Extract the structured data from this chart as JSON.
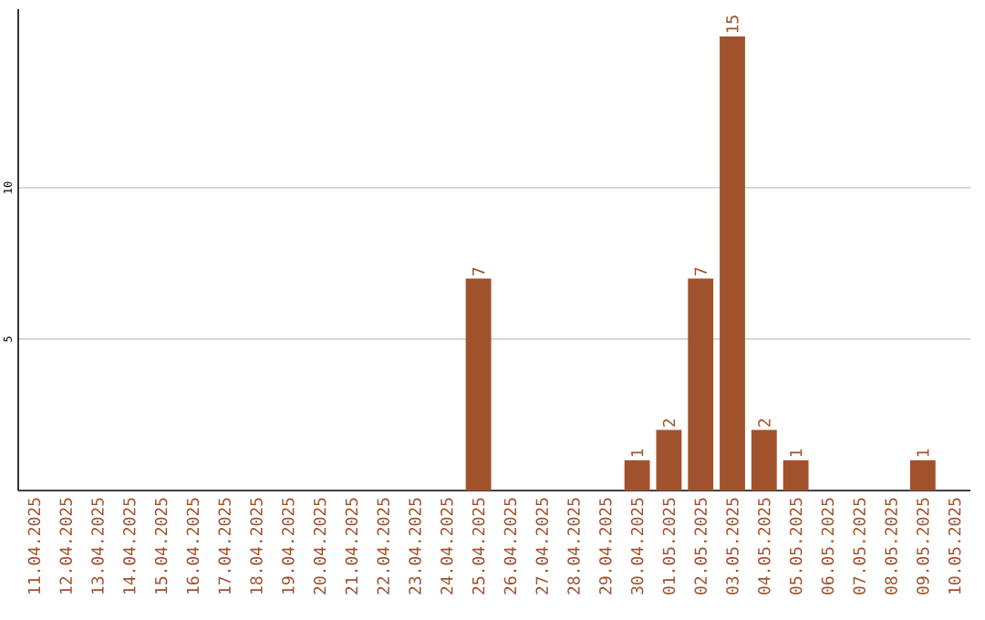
{
  "chart_data": {
    "type": "bar",
    "categories": [
      "11.04.2025",
      "12.04.2025",
      "13.04.2025",
      "14.04.2025",
      "15.04.2025",
      "16.04.2025",
      "17.04.2025",
      "18.04.2025",
      "19.04.2025",
      "20.04.2025",
      "21.04.2025",
      "22.04.2025",
      "23.04.2025",
      "24.04.2025",
      "25.04.2025",
      "26.04.2025",
      "27.04.2025",
      "28.04.2025",
      "29.04.2025",
      "30.04.2025",
      "01.05.2025",
      "02.05.2025",
      "03.05.2025",
      "04.05.2025",
      "05.05.2025",
      "06.05.2025",
      "07.05.2025",
      "08.05.2025",
      "09.05.2025",
      "10.05.2025"
    ],
    "values": [
      0,
      0,
      0,
      0,
      0,
      0,
      0,
      0,
      0,
      0,
      0,
      0,
      0,
      0,
      7,
      0,
      0,
      0,
      0,
      1,
      2,
      7,
      15,
      2,
      1,
      0,
      0,
      0,
      1,
      0
    ],
    "value_labels": [
      null,
      null,
      null,
      null,
      null,
      null,
      null,
      null,
      null,
      null,
      null,
      null,
      null,
      null,
      "7",
      null,
      null,
      null,
      null,
      "1",
      "2",
      "7",
      "15",
      "2",
      "1",
      null,
      null,
      null,
      "1",
      null
    ],
    "color": "#a0522d",
    "ylim": [
      0,
      15.9
    ],
    "yticks": [
      5,
      10
    ],
    "grid": "y"
  }
}
